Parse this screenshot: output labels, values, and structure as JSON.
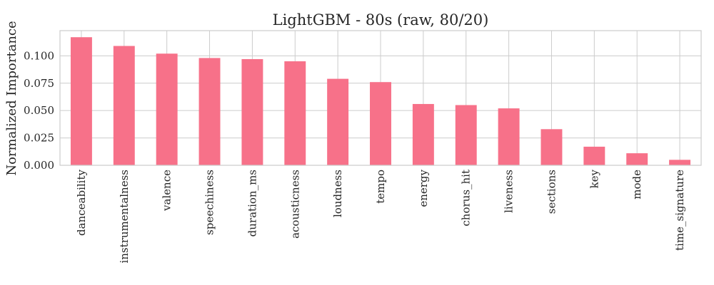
{
  "chart_data": {
    "type": "bar",
    "title": "LightGBM - 80s (raw, 80/20)",
    "xlabel": "",
    "ylabel": "Normalized Importance",
    "categories": [
      "danceability",
      "instrumentalness",
      "valence",
      "speechiness",
      "duration_ms",
      "acousticness",
      "loudness",
      "tempo",
      "energy",
      "chorus_hit",
      "liveness",
      "sections",
      "key",
      "mode",
      "time_signature"
    ],
    "values": [
      0.117,
      0.109,
      0.102,
      0.098,
      0.097,
      0.095,
      0.079,
      0.076,
      0.056,
      0.055,
      0.052,
      0.033,
      0.017,
      0.011,
      0.005
    ],
    "ylim": [
      0,
      0.123
    ],
    "yticks": [
      "0.000",
      "0.025",
      "0.050",
      "0.075",
      "0.100"
    ],
    "bar_color": "#f77189",
    "grid": true,
    "legend": "none"
  }
}
